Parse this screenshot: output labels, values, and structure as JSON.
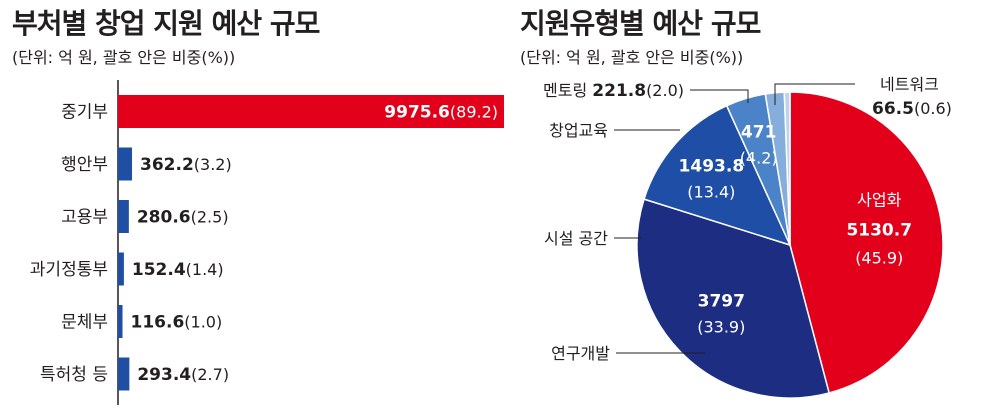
{
  "chart_data": [
    {
      "type": "bar",
      "orientation": "horizontal",
      "title": "부처별 창업 지원 예산 규모",
      "subtitle": "(단위: 억 원, 괄호 안은 비중(%))",
      "categories": [
        "중기부",
        "행안부",
        "고용부",
        "과기정통부",
        "문체부",
        "특허청 등"
      ],
      "values": [
        9975.6,
        362.2,
        280.6,
        152.4,
        116.6,
        293.4
      ],
      "value_labels": [
        "9975.6",
        "362.2",
        "280.6",
        "152.4",
        "116.6",
        "293.4"
      ],
      "shares": [
        "(89.2)",
        "(3.2)",
        "(2.5)",
        "(1.4)",
        "(1.0)",
        "(2.7)"
      ],
      "colors": [
        "#e2001a",
        "#1e4fa3",
        "#1e4fa3",
        "#1e4fa3",
        "#1e4fa3",
        "#1e4fa3"
      ],
      "xlim": [
        0,
        9975.6
      ],
      "grid": false,
      "legend": "none"
    },
    {
      "type": "pie",
      "title": "지원유형별 예산 규모",
      "subtitle": "(단위: 억 원, 괄호 안은 비중(%))",
      "slices": [
        {
          "label": "사업화",
          "value": 5130.7,
          "value_label": "5130.7",
          "share": "(45.9)",
          "color": "#e2001a"
        },
        {
          "label": "연구개발",
          "value": 3797,
          "value_label": "3797",
          "share": "(33.9)",
          "color": "#1d2d82"
        },
        {
          "label": "시설 공간",
          "value": 1493.8,
          "value_label": "1493.8",
          "share": "(13.4)",
          "color": "#1f4ea6"
        },
        {
          "label": "창업교육",
          "value": 471,
          "value_label": "471",
          "share": "(4.2)",
          "color": "#4a83c8"
        },
        {
          "label": "멘토링",
          "value": 221.8,
          "value_label": "221.8",
          "share": "(2.0)",
          "color": "#86aedc"
        },
        {
          "label": "네트워크",
          "value": 66.5,
          "value_label": "66.5",
          "share": "(0.6)",
          "color": "#bdd3ee"
        }
      ],
      "legend": "none"
    }
  ]
}
